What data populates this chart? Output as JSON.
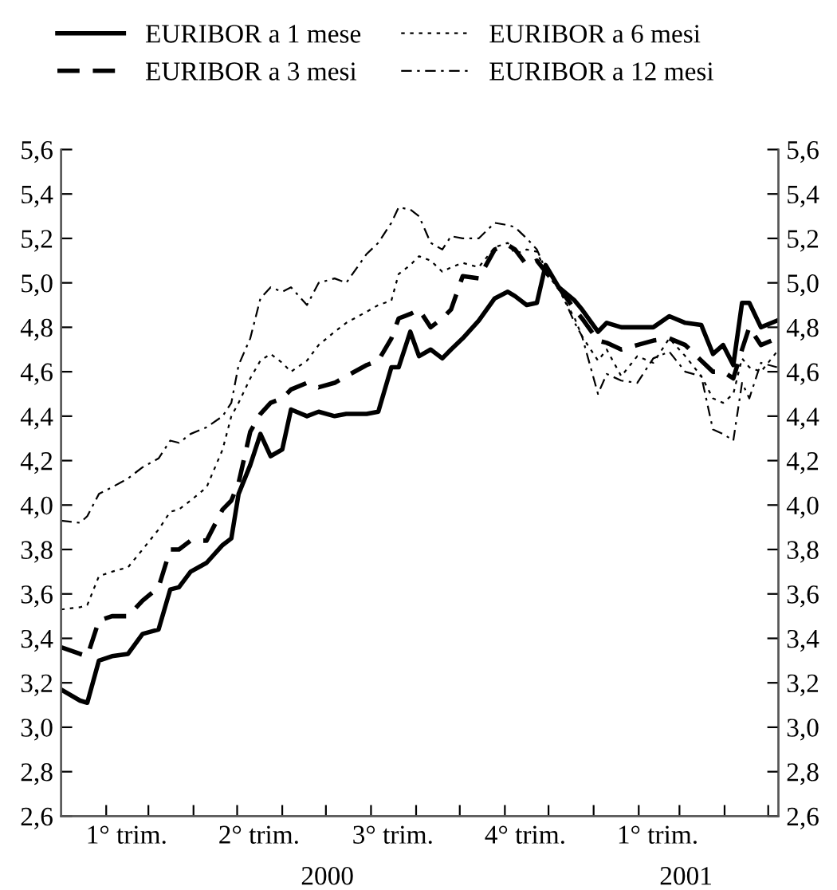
{
  "chart_data": {
    "type": "line",
    "x": [
      "2000-01-01",
      "2000-01-14",
      "2000-01-19",
      "2000-01-27",
      "2000-02-05",
      "2000-02-16",
      "2000-02-26",
      "2000-03-08",
      "2000-03-16",
      "2000-03-22",
      "2000-03-30",
      "2000-04-10",
      "2000-04-21",
      "2000-04-27",
      "2000-05-02",
      "2000-05-10",
      "2000-05-17",
      "2000-05-24",
      "2000-06-01",
      "2000-06-07",
      "2000-06-18",
      "2000-06-26",
      "2000-07-07",
      "2000-07-15",
      "2000-07-29",
      "2000-08-06",
      "2000-08-15",
      "2000-08-20",
      "2000-08-28",
      "2000-09-03",
      "2000-09-11",
      "2000-09-19",
      "2000-09-25",
      "2000-10-03",
      "2000-10-14",
      "2000-10-25",
      "2000-11-03",
      "2000-11-08",
      "2000-11-16",
      "2000-11-23",
      "2000-11-29",
      "2000-12-08",
      "2000-12-19",
      "2000-12-24",
      "2001-01-04",
      "2001-01-10",
      "2001-01-20",
      "2001-01-31",
      "2001-02-11",
      "2001-02-22",
      "2001-03-05",
      "2001-03-16",
      "2001-03-24",
      "2001-03-31",
      "2001-04-07",
      "2001-04-13",
      "2001-04-18",
      "2001-04-26",
      "2001-05-07"
    ],
    "series": [
      {
        "name": "EURIBOR a 1 mese",
        "color": "#000000",
        "line_style": "solid",
        "values": [
          3.17,
          3.12,
          3.11,
          3.3,
          3.32,
          3.33,
          3.42,
          3.44,
          3.62,
          3.63,
          3.7,
          3.74,
          3.82,
          3.85,
          4.05,
          4.18,
          4.32,
          4.22,
          4.25,
          4.43,
          4.4,
          4.42,
          4.4,
          4.41,
          4.41,
          4.42,
          4.62,
          4.62,
          4.78,
          4.67,
          4.7,
          4.66,
          4.7,
          4.75,
          4.83,
          4.93,
          4.96,
          4.94,
          4.9,
          4.91,
          5.08,
          4.98,
          4.92,
          4.88,
          4.78,
          4.82,
          4.8,
          4.8,
          4.8,
          4.85,
          4.82,
          4.81,
          4.68,
          4.72,
          4.63,
          4.91,
          4.91,
          4.8,
          4.83
        ]
      },
      {
        "name": "EURIBOR a 3 mesi",
        "color": "#000000",
        "line_style": "dashed",
        "values": [
          3.36,
          3.33,
          3.32,
          3.48,
          3.5,
          3.5,
          3.57,
          3.63,
          3.8,
          3.8,
          3.84,
          3.84,
          3.98,
          4.02,
          4.1,
          4.33,
          4.41,
          4.46,
          4.48,
          4.52,
          4.55,
          4.53,
          4.55,
          4.58,
          4.63,
          4.65,
          4.75,
          4.84,
          4.86,
          4.88,
          4.8,
          4.84,
          4.88,
          5.03,
          5.02,
          5.15,
          5.17,
          5.15,
          5.08,
          5.1,
          5.05,
          4.98,
          4.88,
          4.84,
          4.74,
          4.73,
          4.7,
          4.72,
          4.74,
          4.75,
          4.72,
          4.65,
          4.6,
          4.6,
          4.57,
          4.7,
          4.8,
          4.72,
          4.75
        ]
      },
      {
        "name": "EURIBOR a 6 mesi",
        "color": "#000000",
        "line_style": "dotted",
        "values": [
          3.53,
          3.54,
          3.55,
          3.68,
          3.7,
          3.72,
          3.8,
          3.89,
          3.97,
          3.98,
          4.02,
          4.08,
          4.25,
          4.4,
          4.46,
          4.57,
          4.65,
          4.68,
          4.64,
          4.6,
          4.65,
          4.72,
          4.78,
          4.82,
          4.87,
          4.9,
          4.92,
          5.04,
          5.08,
          5.12,
          5.1,
          5.05,
          5.07,
          5.09,
          5.07,
          5.16,
          5.18,
          5.13,
          5.15,
          5.14,
          5.05,
          4.97,
          4.84,
          4.76,
          4.65,
          4.7,
          4.58,
          4.67,
          4.64,
          4.75,
          4.67,
          4.58,
          4.48,
          4.46,
          4.5,
          4.66,
          4.62,
          4.6,
          4.69
        ]
      },
      {
        "name": "EURIBOR a 12 mesi",
        "color": "#000000",
        "line_style": "dashdot",
        "values": [
          3.93,
          3.92,
          3.95,
          4.05,
          4.08,
          4.12,
          4.17,
          4.21,
          4.29,
          4.28,
          4.32,
          4.35,
          4.4,
          4.46,
          4.63,
          4.75,
          4.93,
          4.98,
          4.96,
          4.98,
          4.9,
          5.0,
          5.02,
          5.0,
          5.13,
          5.18,
          5.27,
          5.34,
          5.33,
          5.3,
          5.18,
          5.15,
          5.21,
          5.2,
          5.2,
          5.27,
          5.26,
          5.25,
          5.2,
          5.15,
          5.06,
          4.98,
          4.82,
          4.76,
          4.5,
          4.59,
          4.56,
          4.55,
          4.66,
          4.69,
          4.6,
          4.58,
          4.34,
          4.32,
          4.29,
          4.55,
          4.48,
          4.64,
          4.62
        ]
      }
    ],
    "xlim": [
      "2000-01-01",
      "2001-05-08"
    ],
    "xticks": [
      {
        "value": "2000-02-01",
        "label": null
      },
      {
        "value": "2000-03-01",
        "label": null
      },
      {
        "value": "2000-04-01",
        "label": null
      },
      {
        "value": "2000-05-01",
        "label": null
      },
      {
        "value": "2000-06-01",
        "label": null
      },
      {
        "value": "2000-07-01",
        "label": null
      },
      {
        "value": "2000-08-01",
        "label": null
      },
      {
        "value": "2000-09-01",
        "label": null
      },
      {
        "value": "2000-10-01",
        "label": null
      },
      {
        "value": "2000-11-01",
        "label": null
      },
      {
        "value": "2000-12-01",
        "label": null
      },
      {
        "value": "2001-01-01",
        "label": null
      },
      {
        "value": "2001-02-01",
        "label": null
      },
      {
        "value": "2001-03-01",
        "label": null
      },
      {
        "value": "2001-04-01",
        "label": null
      },
      {
        "value": "2001-05-01",
        "label": null
      },
      {
        "value": "2000-02-15",
        "label": "1° trim."
      },
      {
        "value": "2000-05-16",
        "label": "2° trim."
      },
      {
        "value": "2000-08-16",
        "label": "3° trim."
      },
      {
        "value": "2000-11-15",
        "label": "4° trim."
      },
      {
        "value": "2001-02-14",
        "label": "1° trim."
      }
    ],
    "ylim": [
      2.6,
      5.6
    ],
    "yticks": [
      {
        "value": 2.6,
        "label": "2,6"
      },
      {
        "value": 2.8,
        "label": "2,8"
      },
      {
        "value": 3.0,
        "label": "3,0"
      },
      {
        "value": 3.2,
        "label": "3,2"
      },
      {
        "value": 3.4,
        "label": "3,4"
      },
      {
        "value": 3.6,
        "label": "3,6"
      },
      {
        "value": 3.8,
        "label": "3,8"
      },
      {
        "value": 4.0,
        "label": "4,0"
      },
      {
        "value": 4.2,
        "label": "4,2"
      },
      {
        "value": 4.4,
        "label": "4,4"
      },
      {
        "value": 4.6,
        "label": "4,6"
      },
      {
        "value": 4.8,
        "label": "4,8"
      },
      {
        "value": 5.0,
        "label": "5,0"
      },
      {
        "value": 5.2,
        "label": "5,2"
      },
      {
        "value": 5.4,
        "label": "5,4"
      },
      {
        "value": 5.6,
        "label": "5,6"
      }
    ],
    "y2lim": [
      2.6,
      5.6
    ],
    "y2ticks": [
      {
        "value": 2.6,
        "label": "2,6"
      },
      {
        "value": 2.8,
        "label": "2,8"
      },
      {
        "value": 3.0,
        "label": "3,0"
      },
      {
        "value": 3.2,
        "label": "3,2"
      },
      {
        "value": 3.4,
        "label": "3,4"
      },
      {
        "value": 3.6,
        "label": "3,6"
      },
      {
        "value": 3.8,
        "label": "3,8"
      },
      {
        "value": 4.0,
        "label": "4,0"
      },
      {
        "value": 4.2,
        "label": "4,2"
      },
      {
        "value": 4.4,
        "label": "4,4"
      },
      {
        "value": 4.6,
        "label": "4,6"
      },
      {
        "value": 4.8,
        "label": "4,8"
      },
      {
        "value": 5.0,
        "label": "5,0"
      },
      {
        "value": 5.2,
        "label": "5,2"
      },
      {
        "value": 5.4,
        "label": "5,4"
      },
      {
        "value": 5.6,
        "label": "5,6"
      }
    ],
    "annotations": [
      "2000",
      "2001"
    ],
    "legend": "top",
    "grid": false,
    "marker": "none"
  }
}
